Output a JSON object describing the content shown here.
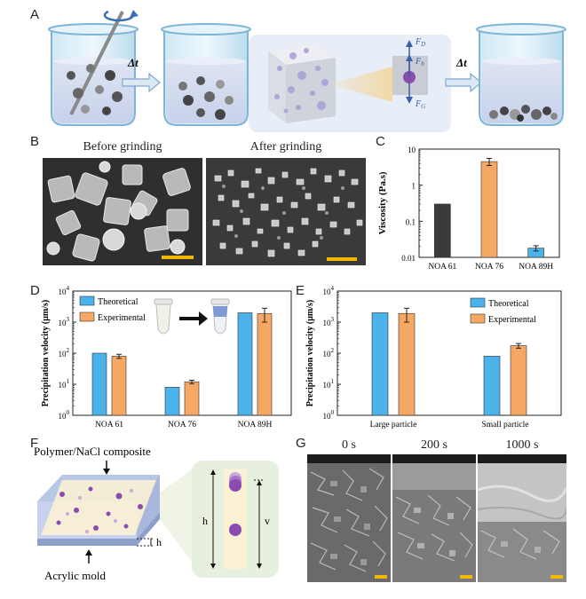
{
  "panels": {
    "a": "A",
    "b": "B",
    "c": "C",
    "d": "D",
    "e": "E",
    "f": "F",
    "g": "G"
  },
  "panel_a": {
    "dt1": "Δt",
    "dt2": "Δt",
    "force_d": "F",
    "force_d_sub": "D",
    "force_b": "F",
    "force_b_sub": "b",
    "force_g": "F",
    "force_g_sub": "G"
  },
  "panel_b": {
    "before": "Before grinding",
    "after": "After grinding"
  },
  "panel_f": {
    "composite": "Polymer/NaCl composite",
    "mold": "Acrylic mold",
    "h_side": "h",
    "h_inner": "h",
    "v_inner": "v"
  },
  "panel_g": {
    "t0": "0 s",
    "t1": "200 s",
    "t2": "1000 s"
  },
  "colors": {
    "theoretical": "#4bb3ea",
    "experimental": "#f5a863",
    "dark_bar": "#3a3a3a"
  },
  "chart_data": [
    {
      "id": "C",
      "type": "bar",
      "scale": "log",
      "categories": [
        "NOA 61",
        "NOA 76",
        "NOA 89H"
      ],
      "values": [
        0.3,
        4.5,
        0.018
      ],
      "errors": [
        0,
        1.0,
        0.003
      ],
      "ylabel": "Viscosity (Pa.s)",
      "ylim": [
        0.01,
        10
      ],
      "yticks": [
        "0.01",
        "0.1",
        "1",
        "10"
      ]
    },
    {
      "id": "D",
      "type": "bar",
      "scale": "log",
      "categories": [
        "NOA 61",
        "NOA 76",
        "NOA 89H"
      ],
      "series": [
        {
          "name": "Theoretical",
          "values": [
            100,
            8,
            2000
          ],
          "errors": [
            0,
            0,
            0
          ]
        },
        {
          "name": "Experimental",
          "values": [
            80,
            12,
            1900
          ],
          "errors": [
            12,
            1.5,
            900
          ]
        }
      ],
      "ylabel": "Precipitation velocity (μm/s)",
      "ylim": [
        1,
        10000
      ],
      "yticks": [
        "10",
        "10",
        "10",
        "10",
        "10"
      ],
      "ytick_exp": [
        "0",
        "1",
        "2",
        "3",
        "4"
      ],
      "legend": "top-left"
    },
    {
      "id": "E",
      "type": "bar",
      "scale": "log",
      "categories": [
        "Large particle",
        "Small particle"
      ],
      "series": [
        {
          "name": "Theoretical",
          "values": [
            2000,
            80
          ],
          "errors": [
            0,
            0
          ]
        },
        {
          "name": "Experimental",
          "values": [
            1900,
            175
          ],
          "errors": [
            900,
            30
          ]
        }
      ],
      "ylabel": "Precipitation velocity (μm/s)",
      "ylim": [
        1,
        10000
      ],
      "yticks": [
        "10",
        "10",
        "10",
        "10",
        "10"
      ],
      "ytick_exp": [
        "0",
        "1",
        "2",
        "3",
        "4"
      ],
      "legend": "top-right"
    }
  ]
}
